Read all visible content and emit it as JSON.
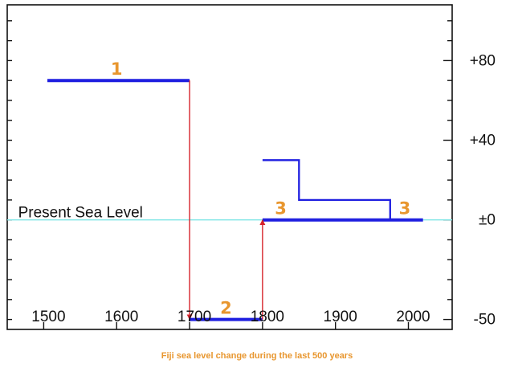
{
  "caption": "Fiji sea level change during the last 500 years",
  "colors": {
    "series": "#1f1fe0",
    "transition": "#d6232b",
    "present_line": "#7fe6e6",
    "period_label": "#e8962e",
    "caption": "#e8962e",
    "axis": "#111111"
  },
  "chart_data": {
    "type": "line",
    "title": "",
    "xlabel": "",
    "ylabel": "",
    "xlim": [
      1450,
      2060
    ],
    "ylim": [
      -55,
      108
    ],
    "x_ticks": [
      1500,
      1600,
      1700,
      1800,
      1900,
      2000
    ],
    "x_tick_labels": [
      "1500",
      "1600",
      "1700",
      "1800",
      "1900",
      "2000"
    ],
    "y_ticks": [
      80,
      40,
      0,
      -50
    ],
    "y_tick_labels": [
      "+80",
      "+40",
      "±0",
      "-50"
    ],
    "grid": false,
    "y_axis_side": "right",
    "annotations": [
      {
        "text": "Present Sea Level",
        "x": 1465,
        "y": 0
      }
    ],
    "period_labels": [
      {
        "text": "1",
        "x": 1600,
        "y": 70
      },
      {
        "text": "2",
        "x": 1750,
        "y": -50
      },
      {
        "text": "3",
        "x": 1825,
        "y": 0
      },
      {
        "text": "3",
        "x": 1995,
        "y": 0
      }
    ],
    "series": [
      {
        "role": "level",
        "style": "thick",
        "points": [
          [
            1505,
            70
          ],
          [
            1700,
            70
          ]
        ]
      },
      {
        "role": "level",
        "style": "thick",
        "points": [
          [
            1700,
            -50
          ],
          [
            1800,
            -50
          ]
        ]
      },
      {
        "role": "level",
        "style": "thick",
        "points": [
          [
            1800,
            0
          ],
          [
            2020,
            0
          ]
        ]
      },
      {
        "role": "detail",
        "style": "thin",
        "points": [
          [
            1800,
            30
          ],
          [
            1850,
            30
          ],
          [
            1850,
            10
          ],
          [
            1975,
            10
          ],
          [
            1975,
            0
          ]
        ]
      }
    ],
    "transitions": [
      {
        "from": [
          1700,
          70
        ],
        "to": [
          1700,
          -50
        ]
      },
      {
        "from": [
          1800,
          -50
        ],
        "to": [
          1800,
          0
        ]
      }
    ]
  }
}
